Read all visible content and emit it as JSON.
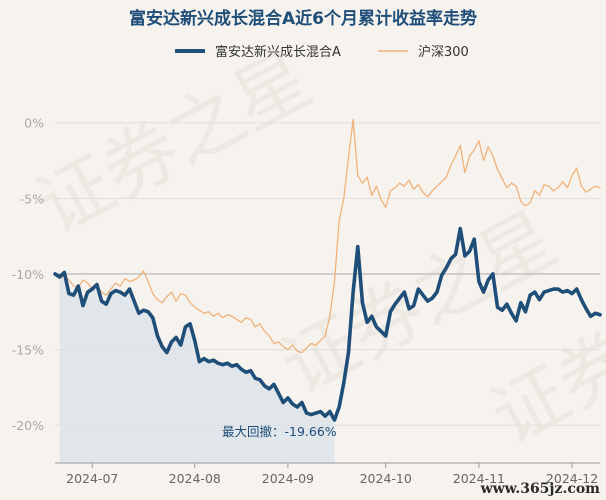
{
  "chart_data": {
    "type": "line",
    "title": "富安达新兴成长混合A近6个月累计收益率走势",
    "x_tick_labels": [
      "2024-07",
      "2024-08",
      "2024-09",
      "2024-10",
      "2024-11",
      "2024-12"
    ],
    "y_tick_labels": [
      "0%",
      "-5%",
      "-10%",
      "-15%",
      "-20%"
    ],
    "y_ticks": [
      0,
      -5,
      -10,
      -15,
      -20
    ],
    "ylim": [
      -22.5,
      1.5
    ],
    "grid": true,
    "legend": "top-center",
    "annotation": "最大回撤：-19.66%",
    "max_drawdown_end": {
      "series": 0,
      "x": 60
    },
    "colors": {
      "fund": "#1f4e79",
      "index": "#f0b27a",
      "drawdown_area": "#dde3e9",
      "grid": "#e2dfda",
      "ref_line": "#bdbdbd"
    },
    "series": [
      {
        "name": "富安达新兴成长混合A",
        "values": [
          -10.0,
          -10.2,
          -9.9,
          -11.3,
          -11.4,
          -10.8,
          -12.1,
          -11.2,
          -11.0,
          -10.7,
          -11.8,
          -12.0,
          -11.3,
          -11.1,
          -11.2,
          -11.4,
          -11.0,
          -11.8,
          -12.6,
          -12.4,
          -12.5,
          -12.9,
          -14.1,
          -14.8,
          -15.2,
          -14.5,
          -14.2,
          -14.7,
          -13.5,
          -13.3,
          -14.4,
          -15.8,
          -15.6,
          -15.8,
          -15.7,
          -15.9,
          -16.0,
          -15.9,
          -16.1,
          -16.0,
          -16.3,
          -16.5,
          -16.4,
          -16.9,
          -17.0,
          -17.4,
          -17.6,
          -17.3,
          -17.9,
          -18.5,
          -18.2,
          -18.6,
          -18.8,
          -18.5,
          -19.2,
          -19.3,
          -19.2,
          -19.1,
          -19.4,
          -19.1,
          -19.66,
          -18.8,
          -17.2,
          -15.2,
          -11.2,
          -8.2,
          -11.9,
          -13.2,
          -12.8,
          -13.5,
          -13.8,
          -14.1,
          -12.5,
          -12.0,
          -11.6,
          -11.2,
          -12.3,
          -12.1,
          -11.0,
          -11.4,
          -11.8,
          -11.6,
          -11.2,
          -10.1,
          -9.6,
          -9.0,
          -8.7,
          -7.0,
          -8.8,
          -8.5,
          -7.7,
          -10.5,
          -11.2,
          -10.4,
          -10.0,
          -12.2,
          -12.4,
          -12.0,
          -12.6,
          -13.1,
          -11.9,
          -12.5,
          -11.4,
          -11.2,
          -11.7,
          -11.2,
          -11.1,
          -11.0,
          -11.0,
          -11.2,
          -11.1,
          -11.3,
          -11.0,
          -11.7,
          -12.3,
          -12.8,
          -12.6,
          -12.7
        ]
      },
      {
        "name": "沪深300",
        "values": [
          -10.0,
          -10.3,
          -10.1,
          -10.4,
          -10.8,
          -10.9,
          -10.4,
          -10.6,
          -11.0,
          -10.8,
          -11.2,
          -11.4,
          -11.0,
          -10.6,
          -10.8,
          -10.3,
          -10.5,
          -10.4,
          -10.2,
          -9.8,
          -10.5,
          -11.3,
          -11.7,
          -11.9,
          -11.5,
          -11.2,
          -11.8,
          -11.3,
          -11.4,
          -11.9,
          -12.2,
          -12.4,
          -12.6,
          -12.5,
          -12.8,
          -12.6,
          -12.9,
          -12.7,
          -12.8,
          -13.0,
          -13.2,
          -12.9,
          -13.0,
          -13.5,
          -13.3,
          -13.8,
          -14.1,
          -14.6,
          -14.5,
          -14.8,
          -15.0,
          -14.7,
          -15.1,
          -15.2,
          -14.9,
          -14.6,
          -14.7,
          -14.4,
          -14.1,
          -12.8,
          -10.5,
          -6.5,
          -5.0,
          -2.3,
          0.2,
          -3.5,
          -4.0,
          -3.6,
          -4.8,
          -4.2,
          -5.1,
          -5.6,
          -4.5,
          -4.3,
          -4.0,
          -4.2,
          -3.8,
          -4.4,
          -4.1,
          -4.6,
          -4.9,
          -4.5,
          -4.2,
          -3.9,
          -3.6,
          -2.8,
          -2.2,
          -1.5,
          -3.3,
          -2.2,
          -1.8,
          -1.2,
          -2.5,
          -1.6,
          -2.2,
          -3.1,
          -3.7,
          -4.3,
          -4.0,
          -4.2,
          -5.2,
          -5.5,
          -5.3,
          -4.5,
          -4.8,
          -4.1,
          -4.2,
          -4.5,
          -4.3,
          -3.9,
          -4.3,
          -3.5,
          -3.0,
          -4.2,
          -4.6,
          -4.4,
          -4.2,
          -4.3
        ]
      }
    ]
  },
  "watermark": {
    "text": "证券之星",
    "site": "www.365jz.com"
  }
}
